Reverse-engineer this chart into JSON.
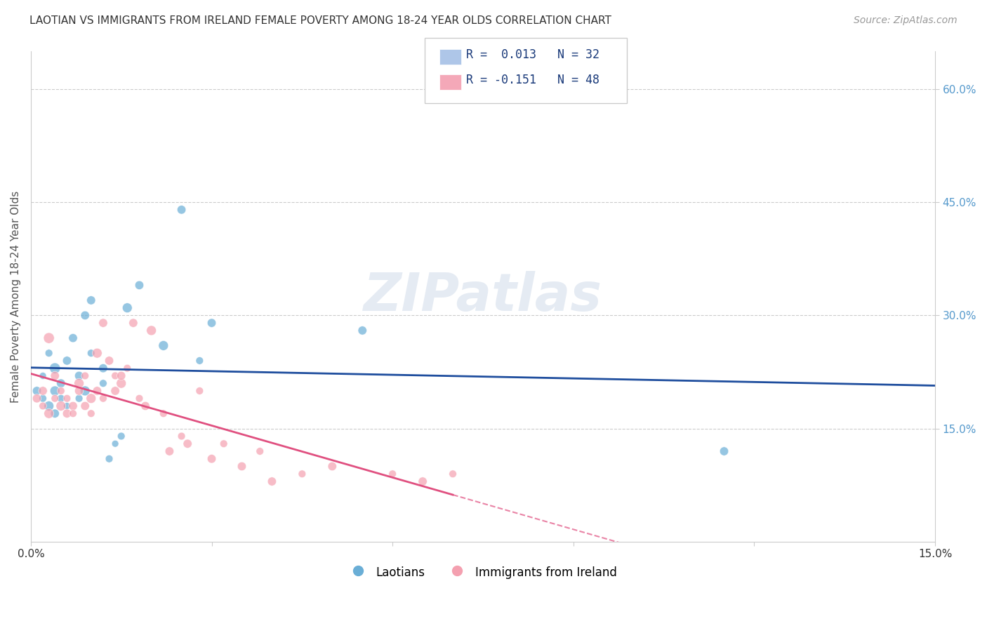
{
  "title": "LAOTIAN VS IMMIGRANTS FROM IRELAND FEMALE POVERTY AMONG 18-24 YEAR OLDS CORRELATION CHART",
  "source": "Source: ZipAtlas.com",
  "ylabel": "Female Poverty Among 18-24 Year Olds",
  "xlim": [
    0.0,
    0.15
  ],
  "ylim": [
    0.0,
    0.65
  ],
  "xtick_positions": [
    0.0,
    0.03,
    0.06,
    0.09,
    0.12,
    0.15
  ],
  "xtick_labels": [
    "0.0%",
    "",
    "",
    "",
    "",
    "15.0%"
  ],
  "ytick_positions": [
    0.15,
    0.3,
    0.45,
    0.6
  ],
  "ytick_labels": [
    "15.0%",
    "30.0%",
    "45.0%",
    "60.0%"
  ],
  "legend_color1": "#aec6e8",
  "legend_color2": "#f4a8b8",
  "watermark": "ZIPatlas",
  "series1_color": "#6aaed6",
  "series2_color": "#f4a0b0",
  "trend1_color": "#1f4e9e",
  "trend2_color": "#e05080",
  "laotian_x": [
    0.001,
    0.002,
    0.002,
    0.003,
    0.003,
    0.004,
    0.004,
    0.004,
    0.005,
    0.005,
    0.006,
    0.006,
    0.007,
    0.008,
    0.008,
    0.009,
    0.009,
    0.01,
    0.01,
    0.012,
    0.012,
    0.013,
    0.014,
    0.015,
    0.016,
    0.018,
    0.022,
    0.025,
    0.028,
    0.03,
    0.055,
    0.115
  ],
  "laotian_y": [
    0.2,
    0.19,
    0.22,
    0.18,
    0.25,
    0.17,
    0.2,
    0.23,
    0.19,
    0.21,
    0.18,
    0.24,
    0.27,
    0.19,
    0.22,
    0.2,
    0.3,
    0.25,
    0.32,
    0.21,
    0.23,
    0.11,
    0.13,
    0.14,
    0.31,
    0.34,
    0.26,
    0.44,
    0.24,
    0.29,
    0.28,
    0.12
  ],
  "laotian_sizes": [
    80,
    60,
    50,
    100,
    60,
    80,
    100,
    120,
    60,
    80,
    50,
    80,
    80,
    60,
    80,
    100,
    80,
    60,
    80,
    60,
    80,
    60,
    50,
    60,
    100,
    80,
    100,
    80,
    60,
    80,
    80,
    80
  ],
  "ireland_x": [
    0.001,
    0.002,
    0.002,
    0.003,
    0.003,
    0.004,
    0.004,
    0.005,
    0.005,
    0.006,
    0.006,
    0.007,
    0.007,
    0.008,
    0.008,
    0.009,
    0.009,
    0.01,
    0.01,
    0.011,
    0.011,
    0.012,
    0.012,
    0.013,
    0.014,
    0.014,
    0.015,
    0.015,
    0.016,
    0.017,
    0.018,
    0.019,
    0.02,
    0.022,
    0.023,
    0.025,
    0.026,
    0.028,
    0.03,
    0.032,
    0.035,
    0.038,
    0.04,
    0.045,
    0.05,
    0.06,
    0.065,
    0.07
  ],
  "ireland_y": [
    0.19,
    0.18,
    0.2,
    0.17,
    0.27,
    0.19,
    0.22,
    0.18,
    0.2,
    0.17,
    0.19,
    0.18,
    0.17,
    0.21,
    0.2,
    0.22,
    0.18,
    0.19,
    0.17,
    0.2,
    0.25,
    0.29,
    0.19,
    0.24,
    0.22,
    0.2,
    0.21,
    0.22,
    0.23,
    0.29,
    0.19,
    0.18,
    0.28,
    0.17,
    0.12,
    0.14,
    0.13,
    0.2,
    0.11,
    0.13,
    0.1,
    0.12,
    0.08,
    0.09,
    0.1,
    0.09,
    0.08,
    0.09
  ],
  "ireland_sizes": [
    80,
    60,
    80,
    100,
    120,
    60,
    80,
    100,
    60,
    80,
    60,
    80,
    60,
    100,
    80,
    60,
    80,
    100,
    60,
    80,
    100,
    80,
    60,
    80,
    60,
    80,
    100,
    80,
    60,
    80,
    60,
    80,
    100,
    60,
    80,
    60,
    80,
    60,
    80,
    60,
    80,
    60,
    80,
    60,
    80,
    60,
    80,
    60
  ]
}
